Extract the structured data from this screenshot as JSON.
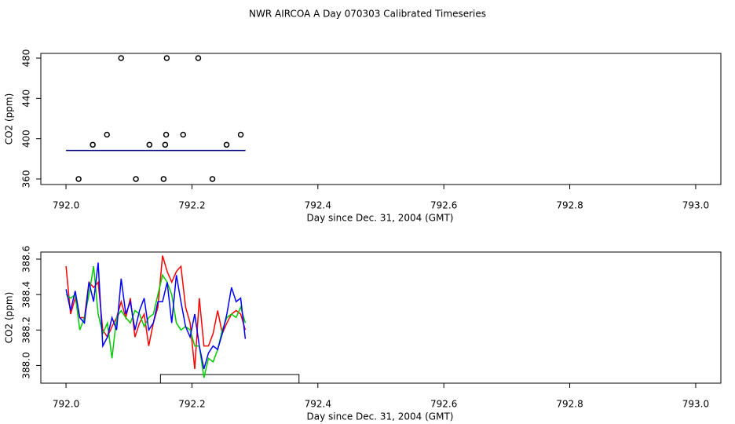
{
  "title": "NWR AIRCOA A  Day 070303  Calibrated Timeseries",
  "chart_data": [
    {
      "type": "scatter",
      "ylabel": "CO2 (ppm)",
      "xlabel": "Day since Dec. 31, 2004 (GMT)",
      "xlim": [
        791.96,
        793.04
      ],
      "xticks": [
        {
          "value": 792,
          "label": "792.0"
        },
        792.2,
        792.4,
        792.6,
        792.8,
        {
          "value": 793,
          "label": "793.0"
        }
      ],
      "ylim": [
        354.5,
        484.7
      ],
      "yticks": [
        360,
        400,
        440,
        480
      ],
      "series": [
        {
          "style": "line",
          "color": "#000080",
          "x": [
            792.0,
            792.285
          ],
          "values": [
            388.3,
            388.3
          ]
        },
        {
          "style": "points",
          "color": "#000000",
          "x": [
            792.02,
            792.0425,
            792.065,
            792.0875,
            792.111,
            792.1325,
            792.155,
            792.1575,
            792.159,
            792.16,
            792.186,
            792.21,
            792.2325,
            792.255,
            792.2775
          ],
          "values": [
            360,
            394,
            404,
            480,
            360,
            394,
            360,
            394,
            404,
            480,
            404,
            480,
            360,
            394,
            404
          ]
        }
      ]
    },
    {
      "type": "line",
      "ylabel": "CO2 (ppm)",
      "xlabel": "Day since Dec. 31, 2004 (GMT)",
      "xlim": [
        791.96,
        793.04
      ],
      "xticks": [
        {
          "value": 792,
          "label": "792.0"
        },
        792.2,
        792.4,
        792.6,
        792.8,
        {
          "value": 793,
          "label": "793.0"
        }
      ],
      "ylim": [
        387.9,
        388.64
      ],
      "yticks": [
        {
          "value": 388,
          "label": "388.0"
        },
        388.2,
        388.4,
        388.6
      ],
      "x": [
        792.0,
        792.0073,
        792.0146,
        792.0219,
        792.0292,
        792.0365,
        792.0438,
        792.0511,
        792.0584,
        792.0657,
        792.073,
        792.0803,
        792.0876,
        792.0949,
        792.1022,
        792.1095,
        792.1168,
        792.1241,
        792.1314,
        792.1387,
        792.146,
        792.1533,
        792.1606,
        792.1679,
        792.1752,
        792.1825,
        792.1898,
        792.1971,
        792.2044,
        792.2117,
        792.219,
        792.2263,
        792.2336,
        792.2409,
        792.2482,
        792.2555,
        792.2628,
        792.2701,
        792.2774,
        792.2847
      ],
      "series": [
        {
          "style": "line",
          "color": "#ff0000",
          "values": [
            388.56,
            388.29,
            388.38,
            388.27,
            388.27,
            388.47,
            388.44,
            388.47,
            388.2,
            388.16,
            388.22,
            388.27,
            388.36,
            388.27,
            388.38,
            388.16,
            388.24,
            388.29,
            388.11,
            388.24,
            388.33,
            388.62,
            388.53,
            388.47,
            388.53,
            388.56,
            388.33,
            388.24,
            387.98,
            388.38,
            388.11,
            388.11,
            388.18,
            388.31,
            388.18,
            388.24,
            388.29,
            388.31,
            388.29,
            388.2
          ]
        },
        {
          "style": "line",
          "color": "#00cc00",
          "values": [
            388.4,
            388.38,
            388.4,
            388.2,
            388.27,
            388.4,
            388.56,
            388.29,
            388.18,
            388.24,
            388.04,
            388.27,
            388.31,
            388.27,
            388.24,
            388.31,
            388.29,
            388.22,
            388.27,
            388.29,
            388.4,
            388.51,
            388.47,
            388.4,
            388.24,
            388.2,
            388.22,
            388.2,
            388.11,
            388.11,
            387.93,
            388.04,
            388.02,
            388.09,
            388.2,
            388.27,
            388.29,
            388.27,
            388.33,
            388.24
          ]
        },
        {
          "style": "line",
          "color": "#0000ff",
          "values": [
            388.43,
            388.31,
            388.42,
            388.27,
            388.24,
            388.47,
            388.36,
            388.58,
            388.11,
            388.16,
            388.27,
            388.2,
            388.49,
            388.29,
            388.36,
            388.2,
            388.31,
            388.38,
            388.2,
            388.24,
            388.36,
            388.36,
            388.47,
            388.24,
            388.51,
            388.36,
            388.22,
            388.16,
            388.29,
            388.11,
            387.98,
            388.07,
            388.11,
            388.09,
            388.18,
            388.29,
            388.44,
            388.36,
            388.38,
            388.15
          ]
        }
      ],
      "spans": [
        [
          792.15,
          792.37
        ]
      ]
    }
  ]
}
